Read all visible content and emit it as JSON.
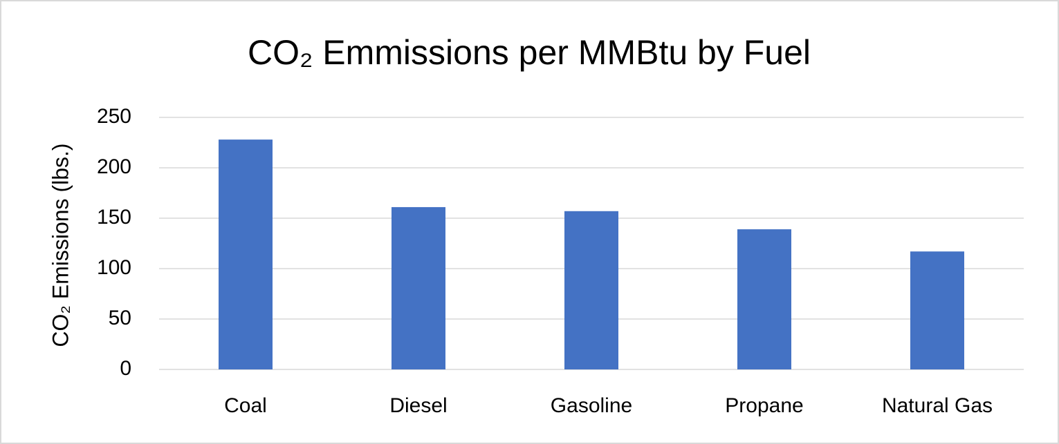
{
  "chart_data": {
    "type": "bar",
    "title": "CO₂ Emmissions per MMBtu by Fuel",
    "y_label": "CO₂ Emissions (lbs.)",
    "categories": [
      "Coal",
      "Diesel",
      "Gasoline",
      "Propane",
      "Natural Gas"
    ],
    "values": [
      228,
      161,
      157,
      139,
      117
    ],
    "color": "#4472c4",
    "ylim": [
      0,
      250
    ],
    "yticks": [
      0,
      50,
      100,
      150,
      200,
      250
    ],
    "grid": true
  }
}
